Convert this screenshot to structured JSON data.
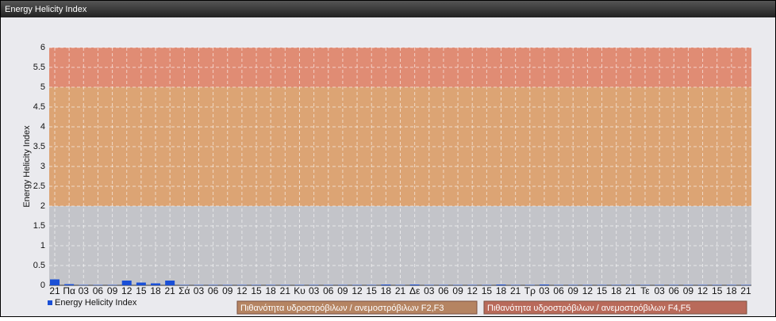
{
  "chart_data": {
    "type": "bar",
    "window_title": "Energy Helicity Index",
    "y_label": "Energy Helicity Index",
    "categories": [
      "21",
      "Πα",
      "03",
      "06",
      "09",
      "12",
      "15",
      "18",
      "21",
      "Σά",
      "03",
      "06",
      "09",
      "12",
      "15",
      "18",
      "21",
      "Κυ",
      "03",
      "06",
      "09",
      "12",
      "15",
      "18",
      "21",
      "Δε",
      "03",
      "06",
      "09",
      "12",
      "15",
      "18",
      "21",
      "Τρ",
      "03",
      "06",
      "09",
      "12",
      "15",
      "18",
      "21",
      "Τε",
      "03",
      "06",
      "09",
      "12",
      "15",
      "18",
      "21"
    ],
    "series": [
      {
        "name": "Energy Helicity Index",
        "color": "#1a4fd6",
        "values": [
          0.15,
          0.03,
          0.01,
          0.01,
          0.01,
          0.12,
          0.07,
          0.05,
          0.12,
          0.01,
          0.01,
          0.01,
          0.01,
          0.01,
          0.01,
          0.01,
          0.01,
          0.01,
          0.01,
          0.01,
          0.01,
          0.01,
          0.01,
          0.02,
          0.01,
          0.02,
          0.01,
          0.01,
          0.01,
          0.01,
          0.01,
          0.02,
          0.01,
          0.01,
          0.02,
          0.01,
          0.01,
          0.01,
          0.01,
          0.01,
          0.01,
          0.01,
          0.01,
          0.01,
          0.01,
          0.01,
          0.01,
          0.01,
          0.01
        ]
      }
    ],
    "plot_color": "#c3c4c9",
    "bands": [
      {
        "from": 2,
        "to": 5,
        "color": "#dca474",
        "name": "Πιθανότητα υδροστρόβιλων / ανεμοστρόβιλων F2,F3",
        "legend_color": "#b58462"
      },
      {
        "from": 5,
        "to": 6,
        "color": "#e08c74",
        "name": "Πιθανότητα υδροστρόβιλων / ανεμοστρόβιλων F4,F5",
        "legend_color": "#b96a5a"
      }
    ],
    "ylim": [
      0,
      6
    ],
    "yticks": [
      0,
      0.5,
      1,
      1.5,
      2,
      2.5,
      3,
      3.5,
      4,
      4.5,
      5,
      5.5,
      6
    ],
    "grid": true
  }
}
